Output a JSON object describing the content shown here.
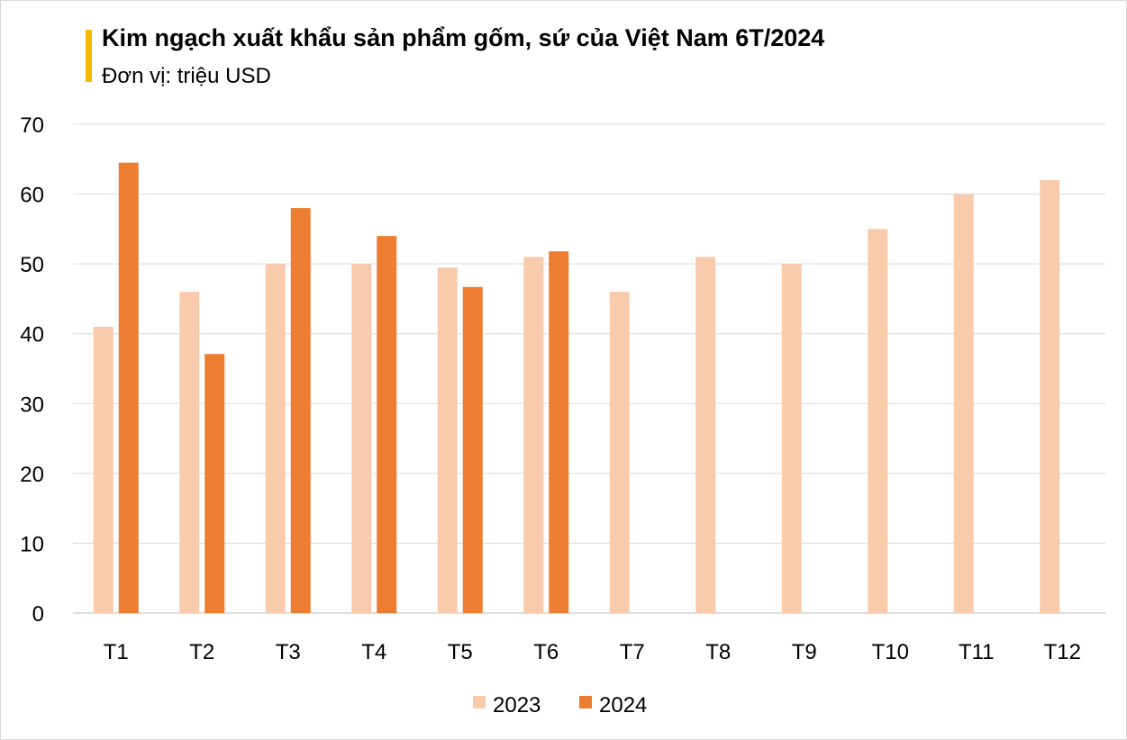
{
  "chart_data": {
    "type": "bar",
    "title": "Kim ngạch xuất khẩu sản phẩm gốm, sứ của Việt Nam 6T/2024",
    "subtitle": "Đơn vị: triệu USD",
    "categories": [
      "T1",
      "T2",
      "T3",
      "T4",
      "T5",
      "T6",
      "T7",
      "T8",
      "T9",
      "T10",
      "T11",
      "T12"
    ],
    "series": [
      {
        "name": "2023",
        "color": "#f8cbad",
        "values": [
          41,
          46,
          50,
          50,
          49.5,
          51,
          46,
          51,
          50,
          55,
          60,
          62
        ]
      },
      {
        "name": "2024",
        "color": "#ed7d31",
        "values": [
          64.5,
          37.1,
          58,
          54,
          46.7,
          51.8,
          null,
          null,
          null,
          null,
          null,
          null
        ]
      }
    ],
    "ylim": [
      0,
      70
    ],
    "yticks": [
      0,
      10,
      20,
      30,
      40,
      50,
      60,
      70
    ],
    "grid": true,
    "legend": "bottom",
    "accent_color": "#f5b800"
  }
}
